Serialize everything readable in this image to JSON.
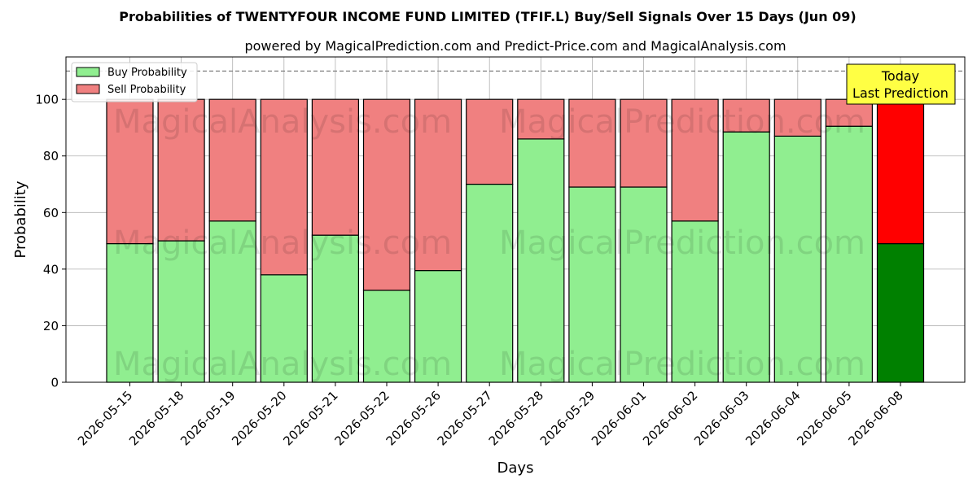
{
  "chart_data": {
    "type": "bar",
    "stacked": true,
    "title": "Probabilities of TWENTYFOUR INCOME FUND LIMITED  (TFIF.L) Buy/Sell Signals Over 15 Days (Jun 09)",
    "subtitle": "powered by MagicalPrediction.com and Predict-Price.com and MagicalAnalysis.com",
    "xlabel": "Days",
    "ylabel": "Probability",
    "ylim": [
      0,
      115
    ],
    "yticks": [
      0,
      20,
      40,
      60,
      80,
      100
    ],
    "grid": true,
    "legend_position": "top-left",
    "categories": [
      "2026-05-15",
      "2026-05-18",
      "2026-05-19",
      "2026-05-20",
      "2026-05-21",
      "2026-05-22",
      "2026-05-26",
      "2026-05-27",
      "2026-05-28",
      "2026-05-29",
      "2026-06-01",
      "2026-06-02",
      "2026-06-03",
      "2026-06-04",
      "2026-06-05",
      "2026-06-08"
    ],
    "series": [
      {
        "name": "Buy Probability",
        "color": "#90ee90",
        "values": [
          49,
          50,
          57,
          38,
          52,
          32.5,
          39.5,
          70,
          86,
          69,
          69,
          57,
          88.5,
          87,
          90.5,
          49
        ]
      },
      {
        "name": "Sell Probability",
        "color": "#f08080",
        "values": [
          51,
          50,
          43,
          62,
          48,
          67.5,
          60.5,
          30,
          14,
          31,
          31,
          43,
          11.5,
          13,
          9.5,
          51
        ]
      }
    ],
    "highlight": {
      "index": 15,
      "buy_color": "#008000",
      "sell_color": "#ff0000"
    },
    "reference_line": {
      "y": 110,
      "style": "dashed",
      "color": "#808080"
    },
    "annotation": {
      "lines": [
        "Today",
        "Last Prediction"
      ],
      "background": "#ffff44"
    },
    "watermarks": [
      "MagicalAnalysis.com",
      "MagicalPrediction.com"
    ]
  }
}
